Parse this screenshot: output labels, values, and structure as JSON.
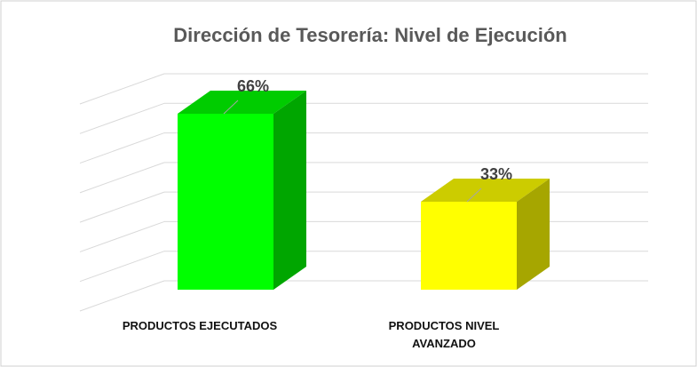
{
  "chart_data": {
    "type": "bar3d",
    "title": "Dirección de Tesorería: Nivel de Ejecución",
    "categories": [
      "PRODUCTOS EJECUTADOS",
      "PRODUCTOS NIVEL AVANZADO"
    ],
    "values": [
      66,
      33
    ],
    "value_labels": [
      "66%",
      "33%"
    ],
    "colors": [
      "#00ff00",
      "#ffff00"
    ],
    "ylim": [
      0,
      70
    ],
    "yticks": [
      0,
      10,
      20,
      30,
      40,
      50,
      60,
      70
    ],
    "grid": true
  }
}
